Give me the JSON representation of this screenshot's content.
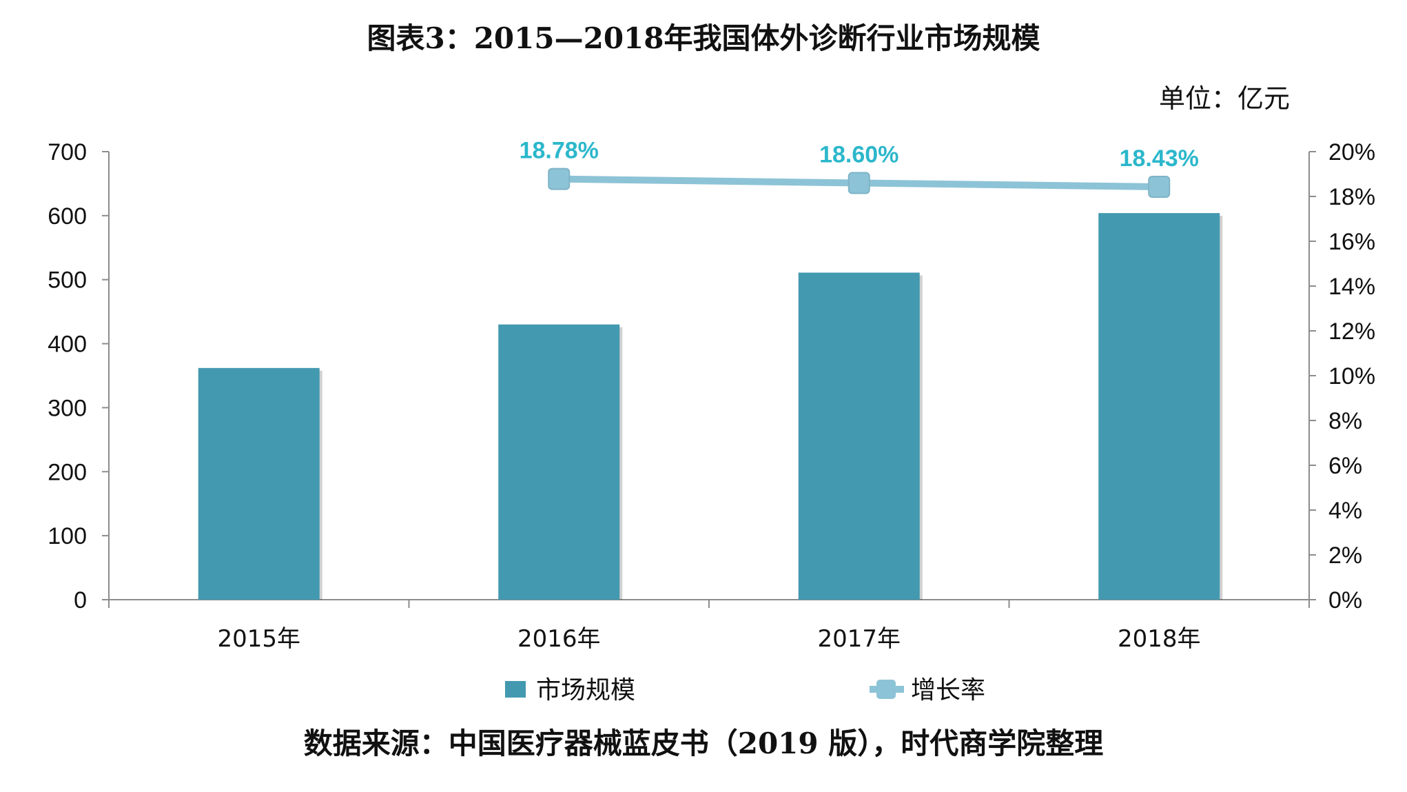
{
  "title": "图表3：2015—2018年我国体外诊断行业市场规模",
  "unit_label": "单位：亿元",
  "source": "数据来源：中国医疗器械蓝皮书（2019 版），时代商学院整理",
  "colors": {
    "bar": "#4399b0",
    "line": "#8dc3d6",
    "data_label": "#2bb7cb",
    "axis": "#8c8c8c"
  },
  "chart_data": {
    "type": "bar",
    "categories": [
      "2015年",
      "2016年",
      "2017年",
      "2018年"
    ],
    "series": [
      {
        "name": "市场规模",
        "type": "bar",
        "axis": "left",
        "values": [
          362,
          430,
          511,
          604
        ]
      },
      {
        "name": "增长率",
        "type": "line",
        "axis": "right",
        "values": [
          null,
          18.78,
          18.6,
          18.43
        ],
        "labels": [
          null,
          "18.78%",
          "18.60%",
          "18.43%"
        ]
      }
    ],
    "left_axis": {
      "min": 0,
      "max": 700,
      "ticks": [
        "0",
        "100",
        "200",
        "300",
        "400",
        "500",
        "600",
        "700"
      ]
    },
    "right_axis": {
      "min": 0,
      "max": 20,
      "ticks": [
        "0%",
        "2%",
        "4%",
        "6%",
        "8%",
        "10%",
        "12%",
        "14%",
        "16%",
        "18%",
        "20%"
      ]
    },
    "grid": false,
    "legend_position": "bottom"
  }
}
